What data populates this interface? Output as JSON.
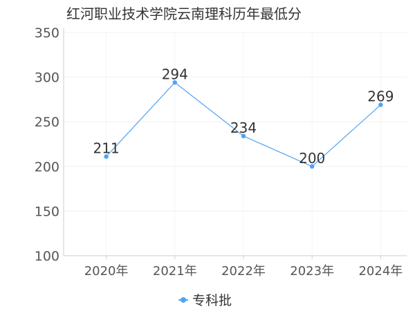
{
  "chart_data": {
    "type": "line",
    "title": "红河职业技术学院云南理科历年最低分",
    "categories": [
      "2020年",
      "2021年",
      "2022年",
      "2023年",
      "2024年"
    ],
    "series": [
      {
        "name": "专科批",
        "values": [
          211,
          294,
          234,
          200,
          269
        ],
        "color": "#4da3f5"
      }
    ],
    "y_ticks": [
      100,
      150,
      200,
      250,
      300,
      350
    ],
    "ylim": [
      100,
      350
    ],
    "grid": true,
    "legend_position": "bottom-center"
  }
}
